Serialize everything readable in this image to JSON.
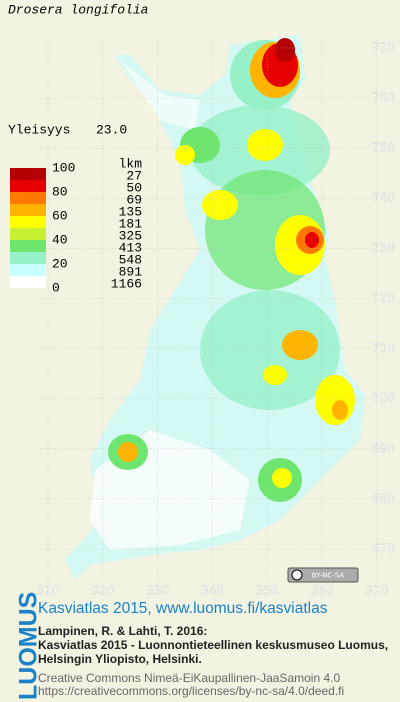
{
  "title": "Drosera longifolia",
  "frequency": {
    "label": "Yleisyys",
    "value": "23.0"
  },
  "legend": {
    "scale_labels": [
      "100",
      "80",
      "60",
      "40",
      "20",
      "0"
    ],
    "count_header": "lkm",
    "counts": [
      "27",
      "50",
      "69",
      "135",
      "181",
      "325",
      "413",
      "548",
      "891",
      "1166"
    ],
    "colors": [
      "#b40000",
      "#e60000",
      "#ff7800",
      "#ffb400",
      "#ffff00",
      "#c8f032",
      "#6ee66e",
      "#96f0c8",
      "#c8ffff",
      "#ffffff"
    ]
  },
  "axes": {
    "y_ticks": [
      "770",
      "760",
      "750",
      "740",
      "730",
      "720",
      "710",
      "700",
      "690",
      "680",
      "670"
    ],
    "x_ticks": [
      "310",
      "320",
      "330",
      "340",
      "350",
      "360",
      "370"
    ]
  },
  "license_badge": "BY-NC-SA",
  "footer": {
    "logo": "LUOMUS",
    "headline": "Kasviatlas 2015, www.luomus.fi/kasviatlas",
    "citation": [
      "Lampinen, R. & Lahti, T. 2016:",
      "Kasviatlas 2015 - Luonnontieteellinen keskusmuseo Luomus,",
      "Helsingin Yliopisto, Helsinki."
    ],
    "license": [
      "Creative Commons Nimeä-EiKaupallinen-JaaSamoin 4.0",
      "https://creativecommons.org/licenses/by-nc-sa/4.0/deed.fi"
    ]
  }
}
